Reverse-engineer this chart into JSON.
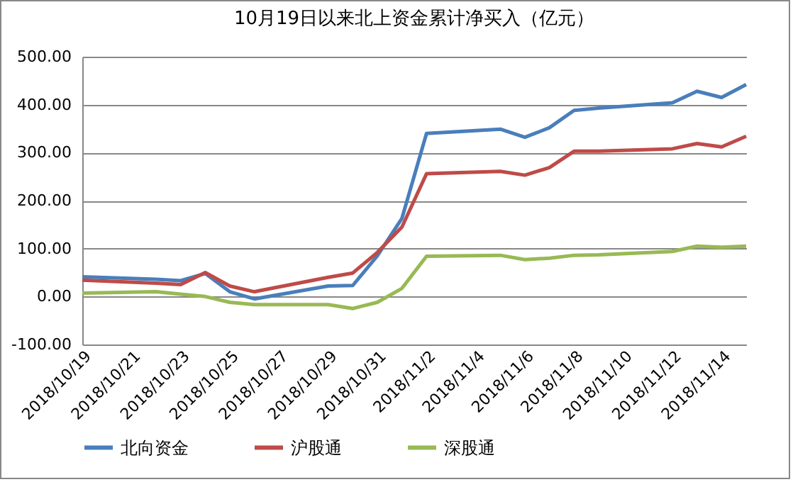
{
  "chart_data": {
    "type": "line",
    "title": "10月19日以来北上资金累计净买入（亿元）",
    "x": [
      "2018-10-19",
      "2018-10-22",
      "2018-10-23",
      "2018-10-24",
      "2018-10-25",
      "2018-10-26",
      "2018-10-29",
      "2018-10-30",
      "2018-10-31",
      "2018-11-01",
      "2018-11-02",
      "2018-11-05",
      "2018-11-06",
      "2018-11-07",
      "2018-11-08",
      "2018-11-09",
      "2018-11-12",
      "2018-11-13",
      "2018-11-14",
      "2018-11-15"
    ],
    "series": [
      {
        "name": "北向资金",
        "color": "#4a7ebb",
        "values": [
          41,
          36,
          33,
          48,
          10,
          -5,
          22,
          23,
          85,
          163,
          340,
          349,
          332,
          352,
          388,
          393,
          404,
          428,
          415,
          442
        ]
      },
      {
        "name": "沪股通",
        "color": "#be4b48",
        "values": [
          34,
          28,
          25,
          50,
          22,
          10,
          40,
          49,
          92,
          145,
          256,
          261,
          253,
          269,
          303,
          303,
          308,
          319,
          312,
          334
        ]
      },
      {
        "name": "深股通",
        "color": "#98b954",
        "values": [
          7,
          10,
          5,
          0,
          -12,
          -17,
          -17,
          -25,
          -12,
          17,
          84,
          86,
          77,
          80,
          86,
          87,
          94,
          105,
          103,
          105
        ]
      }
    ],
    "xlim": [
      "2018-10-19",
      "2018-11-15"
    ],
    "xticks": [
      {
        "value": "2018-10-19",
        "label": "2018/10/19"
      },
      {
        "value": "2018-10-21",
        "label": "2018/10/21"
      },
      {
        "value": "2018-10-23",
        "label": "2018/10/23"
      },
      {
        "value": "2018-10-25",
        "label": "2018/10/25"
      },
      {
        "value": "2018-10-27",
        "label": "2018/10/27"
      },
      {
        "value": "2018-10-29",
        "label": "2018/10/29"
      },
      {
        "value": "2018-10-31",
        "label": "2018/10/31"
      },
      {
        "value": "2018-11-02",
        "label": "2018/11/2"
      },
      {
        "value": "2018-11-04",
        "label": "2018/11/4"
      },
      {
        "value": "2018-11-06",
        "label": "2018/11/6"
      },
      {
        "value": "2018-11-08",
        "label": "2018/11/8"
      },
      {
        "value": "2018-11-10",
        "label": "2018/11/10"
      },
      {
        "value": "2018-11-12",
        "label": "2018/11/12"
      },
      {
        "value": "2018-11-14",
        "label": "2018/11/14"
      }
    ],
    "ylim": [
      -100,
      500
    ],
    "yticks": [
      {
        "value": -100,
        "label": "-100.00"
      },
      {
        "value": 0,
        "label": "0.00"
      },
      {
        "value": 100,
        "label": "100.00"
      },
      {
        "value": 200,
        "label": "200.00"
      },
      {
        "value": 300,
        "label": "300.00"
      },
      {
        "value": 400,
        "label": "400.00"
      },
      {
        "value": 500,
        "label": "500.00"
      }
    ],
    "grid": "y",
    "legend": "bottom",
    "marker": "none",
    "line_style": "solid"
  }
}
